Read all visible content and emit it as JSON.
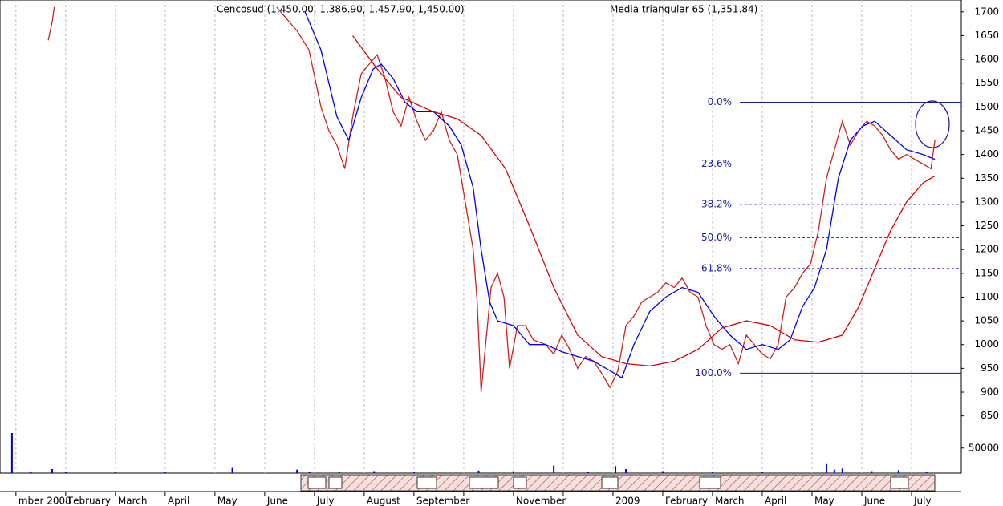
{
  "chart_data": {
    "type": "line",
    "title": "Cencosud (1,450.00, 1,386.90, 1,457.90, 1,450.00)",
    "subtitle": "Media triangular 65 (1,351.84)",
    "xlim": [
      -0.32,
      19
    ],
    "xticks": [
      {
        "value": 0,
        "label": "mber 2008"
      },
      {
        "value": 1,
        "label": "February"
      },
      {
        "value": 2,
        "label": "March"
      },
      {
        "value": 3,
        "label": "April"
      },
      {
        "value": 4,
        "label": "May"
      },
      {
        "value": 5,
        "label": "June"
      },
      {
        "value": 6,
        "label": "July"
      },
      {
        "value": 7,
        "label": "August"
      },
      {
        "value": 8,
        "label": "September"
      },
      {
        "value": 9,
        "label": null
      },
      {
        "value": 10,
        "label": "November"
      },
      {
        "value": 11,
        "label": null
      },
      {
        "value": 12,
        "label": "2009"
      },
      {
        "value": 13,
        "label": "February"
      },
      {
        "value": 14,
        "label": "March"
      },
      {
        "value": 15,
        "label": "April"
      },
      {
        "value": 16,
        "label": "May"
      },
      {
        "value": 17,
        "label": "June"
      },
      {
        "value": 18,
        "label": "July"
      }
    ],
    "ylim": [
      814,
      1725
    ],
    "yticks": [
      850,
      900,
      950,
      1000,
      1050,
      1100,
      1150,
      1200,
      1250,
      1300,
      1350,
      1400,
      1450,
      1500,
      1550,
      1600,
      1650,
      1700
    ],
    "grid": true,
    "series": [
      {
        "color": "#cc2222",
        "x": [
          0.65,
          0.73,
          0.77,
          3.0,
          5.24,
          5.65,
          5.89,
          6.13,
          6.29,
          6.45,
          6.61,
          6.77,
          6.94,
          7.1,
          7.26,
          7.42,
          7.58,
          7.74,
          7.9,
          8.06,
          8.23,
          8.39,
          8.55,
          8.71,
          8.87,
          9.03,
          9.19,
          9.27,
          9.35,
          9.44,
          9.55,
          9.68,
          9.81,
          9.92,
          10.08,
          10.24,
          10.4,
          10.65,
          10.81,
          10.97,
          11.13,
          11.29,
          11.45,
          11.61,
          11.77,
          11.94,
          12.1,
          12.26,
          12.42,
          12.58,
          12.74,
          12.9,
          13.06,
          13.23,
          13.39,
          13.55,
          13.71,
          13.87,
          14.03,
          14.19,
          14.35,
          14.52,
          14.68,
          14.84,
          15.0,
          15.16,
          15.32,
          15.48,
          15.65,
          15.81,
          15.97,
          16.13,
          16.29,
          16.45,
          16.61,
          16.77,
          16.94,
          17.1,
          17.26,
          17.42,
          17.58,
          17.74,
          17.9,
          18.06,
          18.23,
          18.39,
          18.47
        ],
        "values": [
          1640,
          1680,
          1710,
          null,
          1710,
          1660,
          1620,
          1500,
          1450,
          1420,
          1370,
          1480,
          1570,
          1590,
          1610,
          1560,
          1490,
          1460,
          1520,
          1470,
          1430,
          1450,
          1490,
          1430,
          1400,
          1300,
          1200,
          1090,
          900,
          1000,
          1120,
          1150,
          1100,
          950,
          1040,
          1040,
          1010,
          1000,
          980,
          1020,
          990,
          950,
          975,
          965,
          940,
          910,
          945,
          1040,
          1060,
          1090,
          1100,
          1110,
          1130,
          1120,
          1140,
          1110,
          1100,
          1040,
          1000,
          990,
          1000,
          960,
          1020,
          1000,
          980,
          970,
          1000,
          1100,
          1120,
          1150,
          1170,
          1240,
          1350,
          1410,
          1470,
          1420,
          1450,
          1470,
          1460,
          1440,
          1410,
          1390,
          1400,
          1390,
          1380,
          1370,
          1430
        ]
      },
      {
        "color": "#0000ee",
        "x": [
          5.81,
          6.13,
          6.45,
          6.69,
          6.94,
          7.18,
          7.34,
          7.58,
          7.82,
          8.06,
          8.39,
          8.71,
          8.95,
          9.19,
          9.35,
          9.52,
          9.68,
          10.0,
          10.32,
          10.65,
          10.97,
          11.29,
          11.61,
          11.94,
          12.18,
          12.42,
          12.74,
          13.06,
          13.39,
          13.71,
          14.03,
          14.35,
          14.68,
          15.0,
          15.32,
          15.56,
          15.81,
          16.05,
          16.29,
          16.53,
          16.77,
          17.02,
          17.26,
          17.58,
          17.9,
          18.23,
          18.47
        ],
        "values": [
          1700,
          1620,
          1480,
          1430,
          1520,
          1580,
          1590,
          1560,
          1510,
          1490,
          1490,
          1460,
          1420,
          1330,
          1200,
          1090,
          1050,
          1040,
          1000,
          1000,
          985,
          975,
          965,
          945,
          930,
          1000,
          1070,
          1100,
          1120,
          1110,
          1060,
          1020,
          990,
          1000,
          990,
          1010,
          1080,
          1120,
          1200,
          1350,
          1430,
          1460,
          1470,
          1440,
          1410,
          1400,
          1390
        ]
      },
      {
        "color": "#e00000",
        "x": [
          6.77,
          7.26,
          7.74,
          8.39,
          8.87,
          9.35,
          9.84,
          10.32,
          10.81,
          11.29,
          11.77,
          12.26,
          12.74,
          13.23,
          13.71,
          14.19,
          14.68,
          15.16,
          15.65,
          16.13,
          16.61,
          16.94,
          17.26,
          17.58,
          17.9,
          18.23,
          18.47
        ],
        "values": [
          1650,
          1580,
          1520,
          1490,
          1475,
          1440,
          1370,
          1250,
          1120,
          1020,
          975,
          960,
          955,
          965,
          990,
          1035,
          1050,
          1040,
          1010,
          1005,
          1020,
          1080,
          1160,
          1240,
          1300,
          1340,
          1355
        ]
      }
    ],
    "fibonacci": {
      "color": "#1a1aa6",
      "start_x": 14.55,
      "levels": [
        {
          "label": "0.0%",
          "value": 1510
        },
        {
          "label": "23.6%",
          "value": 1380
        },
        {
          "label": "38.2%",
          "value": 1295
        },
        {
          "label": "50.0%",
          "value": 1225
        },
        {
          "label": "61.8%",
          "value": 1160
        },
        {
          "label": "100.0%",
          "value": 940
        }
      ]
    },
    "volume": {
      "type": "bar",
      "color": "#0000cc",
      "ylim": [
        0,
        80000
      ],
      "yticks": [
        50000
      ],
      "x": [
        -0.08,
        0.3,
        0.73,
        1.0,
        2.0,
        3.0,
        4.35,
        5.65,
        5.9,
        6.5,
        7.2,
        8.0,
        9.3,
        10.0,
        10.81,
        11.5,
        12.05,
        12.26,
        13.0,
        14.0,
        15.0,
        16.29,
        16.45,
        16.61,
        17.2,
        17.74,
        18.3
      ],
      "values": [
        80000,
        3000,
        8000,
        3000,
        2000,
        2000,
        12000,
        7000,
        3000,
        3000,
        4000,
        3000,
        5000,
        4000,
        15000,
        3000,
        14000,
        8000,
        4000,
        3000,
        3000,
        18000,
        7000,
        9000,
        4000,
        6000,
        3000
      ]
    }
  }
}
